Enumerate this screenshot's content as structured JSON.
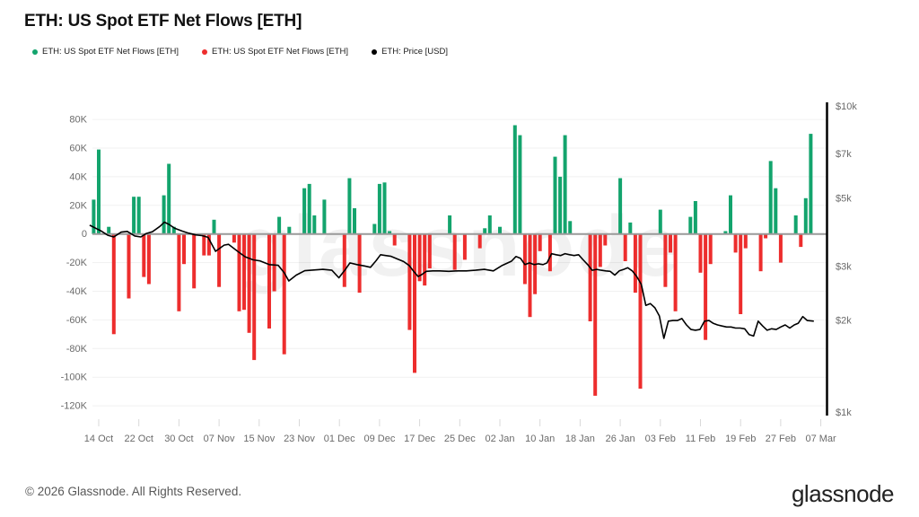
{
  "header": {
    "title": "ETH: US Spot ETF Net Flows [ETH]"
  },
  "legend": [
    {
      "label": "ETH: US Spot ETF Net Flows [ETH]",
      "color": "#13a46d",
      "series": "netflow-positive"
    },
    {
      "label": "ETH: US Spot ETF Net Flows [ETH]",
      "color": "#ed2d2d",
      "series": "netflow-negative"
    },
    {
      "label": "ETH: Price [USD]",
      "color": "#000000",
      "series": "price"
    }
  ],
  "watermark": "glassnode",
  "footer": {
    "copyright": "© 2026 Glassnode. All Rights Reserved.",
    "brand": "glassnode"
  },
  "chart_data": {
    "type": "bar+line",
    "title": "ETH: US Spot ETF Net Flows [ETH]",
    "bar_units": "ETH (thousands)",
    "line_units": "USD",
    "colors": {
      "positive": "#13a46d",
      "negative": "#ed2d2d",
      "price": "#000000",
      "zero_line": "#999999",
      "grid": "#f1f1f1",
      "axis_text": "#6b6b6b",
      "tick_mark": "#d9d9d9"
    },
    "y_left": {
      "scale": "linear",
      "range_k": [
        -130,
        92
      ],
      "ticks": [
        {
          "label": "80K",
          "value": 80
        },
        {
          "label": "60K",
          "value": 60
        },
        {
          "label": "40K",
          "value": 40
        },
        {
          "label": "20K",
          "value": 20
        },
        {
          "label": "0",
          "value": 0
        },
        {
          "label": "-20K",
          "value": -20
        },
        {
          "label": "-40K",
          "value": -40
        },
        {
          "label": "-60K",
          "value": -60
        },
        {
          "label": "-80K",
          "value": -80
        },
        {
          "label": "-100K",
          "value": -100
        },
        {
          "label": "-120K",
          "value": -120
        }
      ]
    },
    "y_right": {
      "scale": "log",
      "range_usd": [
        1000,
        10000
      ],
      "ticks": [
        {
          "label": "$10k",
          "usd": 10000
        },
        {
          "label": "$7k",
          "usd": 7000
        },
        {
          "label": "$5k",
          "usd": 5000
        },
        {
          "label": "$3k",
          "usd": 3000
        },
        {
          "label": "$2k",
          "usd": 2000
        },
        {
          "label": "$1k",
          "usd": 1000
        }
      ]
    },
    "x_ticks": [
      {
        "label": "14 Oct",
        "d": 0
      },
      {
        "label": "22 Oct",
        "d": 8
      },
      {
        "label": "30 Oct",
        "d": 16
      },
      {
        "label": "07 Nov",
        "d": 24
      },
      {
        "label": "15 Nov",
        "d": 32
      },
      {
        "label": "23 Nov",
        "d": 40
      },
      {
        "label": "01 Dec",
        "d": 48
      },
      {
        "label": "09 Dec",
        "d": 56
      },
      {
        "label": "17 Dec",
        "d": 64
      },
      {
        "label": "25 Dec",
        "d": 72
      },
      {
        "label": "02 Jan",
        "d": 80
      },
      {
        "label": "10 Jan",
        "d": 88
      },
      {
        "label": "18 Jan",
        "d": 96
      },
      {
        "label": "26 Jan",
        "d": 104
      },
      {
        "label": "03 Feb",
        "d": 112
      },
      {
        "label": "11 Feb",
        "d": 120
      },
      {
        "label": "19 Feb",
        "d": 128
      },
      {
        "label": "27 Feb",
        "d": 136
      },
      {
        "label": "07 Mar",
        "d": 144
      }
    ],
    "flows": {
      "columns": [
        "date",
        "day_index",
        "net_flow_k_eth"
      ],
      "rows": [
        [
          "13 Oct",
          -1,
          24
        ],
        [
          "14 Oct",
          0,
          59
        ],
        [
          "16 Oct",
          2,
          5
        ],
        [
          "17 Oct",
          3,
          -70
        ],
        [
          "20 Oct",
          6,
          -45
        ],
        [
          "21 Oct",
          7,
          26
        ],
        [
          "22 Oct",
          8,
          26
        ],
        [
          "23 Oct",
          9,
          -30
        ],
        [
          "24 Oct",
          10,
          -35
        ],
        [
          "27 Oct",
          13,
          27
        ],
        [
          "28 Oct",
          14,
          49
        ],
        [
          "29 Oct",
          15,
          5
        ],
        [
          "30 Oct",
          16,
          -54
        ],
        [
          "31 Oct",
          17,
          -21
        ],
        [
          "02 Nov",
          19,
          -38
        ],
        [
          "04 Nov",
          21,
          -15
        ],
        [
          "05 Nov",
          22,
          -15
        ],
        [
          "06 Nov",
          23,
          10
        ],
        [
          "07 Nov",
          24,
          -37
        ],
        [
          "10 Nov",
          27,
          -6
        ],
        [
          "11 Nov",
          28,
          -54
        ],
        [
          "12 Nov",
          29,
          -53
        ],
        [
          "13 Nov",
          30,
          -69
        ],
        [
          "14 Nov",
          31,
          -88
        ],
        [
          "17 Nov",
          34,
          -66
        ],
        [
          "18 Nov",
          35,
          -40
        ],
        [
          "19 Nov",
          36,
          12
        ],
        [
          "20 Nov",
          37,
          -84
        ],
        [
          "21 Nov",
          38,
          5
        ],
        [
          "24 Nov",
          41,
          32
        ],
        [
          "25 Nov",
          42,
          35
        ],
        [
          "26 Nov",
          43,
          13
        ],
        [
          "28 Nov",
          45,
          24
        ],
        [
          "02 Dec",
          49,
          -37
        ],
        [
          "03 Dec",
          50,
          39
        ],
        [
          "04 Dec",
          51,
          18
        ],
        [
          "05 Dec",
          52,
          -41
        ],
        [
          "08 Dec",
          55,
          7
        ],
        [
          "09 Dec",
          56,
          35
        ],
        [
          "10 Dec",
          57,
          36
        ],
        [
          "11 Dec",
          58,
          2
        ],
        [
          "12 Dec",
          59,
          -8
        ],
        [
          "15 Dec",
          62,
          -67
        ],
        [
          "16 Dec",
          63,
          -97
        ],
        [
          "17 Dec",
          64,
          -33
        ],
        [
          "18 Dec",
          65,
          -36
        ],
        [
          "19 Dec",
          66,
          -24
        ],
        [
          "23 Dec",
          70,
          13
        ],
        [
          "24 Dec",
          71,
          -25
        ],
        [
          "26 Dec",
          73,
          -18
        ],
        [
          "29 Dec",
          76,
          -10
        ],
        [
          "30 Dec",
          77,
          4
        ],
        [
          "31 Dec",
          78,
          13
        ],
        [
          "02 Jan",
          80,
          5
        ],
        [
          "05 Jan",
          83,
          76
        ],
        [
          "06 Jan",
          84,
          69
        ],
        [
          "07 Jan",
          85,
          -35
        ],
        [
          "08 Jan",
          86,
          -58
        ],
        [
          "09 Jan",
          87,
          -42
        ],
        [
          "10 Jan",
          88,
          -12
        ],
        [
          "12 Jan",
          90,
          -26
        ],
        [
          "13 Jan",
          91,
          54
        ],
        [
          "14 Jan",
          92,
          40
        ],
        [
          "15 Jan",
          93,
          69
        ],
        [
          "16 Jan",
          94,
          9
        ],
        [
          "20 Jan",
          98,
          -61
        ],
        [
          "21 Jan",
          99,
          -113
        ],
        [
          "22 Jan",
          100,
          -23
        ],
        [
          "23 Jan",
          101,
          -8
        ],
        [
          "26 Jan",
          104,
          39
        ],
        [
          "27 Jan",
          105,
          -19
        ],
        [
          "28 Jan",
          106,
          8
        ],
        [
          "29 Jan",
          107,
          -41
        ],
        [
          "30 Jan",
          108,
          -108
        ],
        [
          "03 Feb",
          112,
          17
        ],
        [
          "04 Feb",
          113,
          -37
        ],
        [
          "05 Feb",
          114,
          -13
        ],
        [
          "06 Feb",
          115,
          -54
        ],
        [
          "09 Feb",
          118,
          12
        ],
        [
          "10 Feb",
          119,
          23
        ],
        [
          "11 Feb",
          120,
          -27
        ],
        [
          "12 Feb",
          121,
          -74
        ],
        [
          "13 Feb",
          122,
          -21
        ],
        [
          "16 Feb",
          125,
          2
        ],
        [
          "17 Feb",
          126,
          27
        ],
        [
          "18 Feb",
          127,
          -13
        ],
        [
          "19 Feb",
          128,
          -56
        ],
        [
          "20 Feb",
          129,
          -10
        ],
        [
          "23 Feb",
          132,
          -26
        ],
        [
          "24 Feb",
          133,
          -3
        ],
        [
          "25 Feb",
          134,
          51
        ],
        [
          "26 Feb",
          135,
          32
        ],
        [
          "27 Feb",
          136,
          -20
        ],
        [
          "02 Mar",
          139,
          13
        ],
        [
          "03 Mar",
          140,
          -9
        ],
        [
          "04 Mar",
          141,
          25
        ],
        [
          "05 Mar",
          142,
          70
        ]
      ]
    },
    "price": {
      "columns": [
        "day_index",
        "price_usd"
      ],
      "rows": [
        [
          -1.8,
          4075
        ],
        [
          0.5,
          3900
        ],
        [
          1.8,
          3780
        ],
        [
          3,
          3730
        ],
        [
          4.5,
          3870
        ],
        [
          5.7,
          3890
        ],
        [
          7.2,
          3760
        ],
        [
          8.4,
          3730
        ],
        [
          9.5,
          3830
        ],
        [
          10.7,
          3880
        ],
        [
          12.2,
          4040
        ],
        [
          13.1,
          4170
        ],
        [
          14,
          4100
        ],
        [
          15.2,
          3980
        ],
        [
          16.6,
          3900
        ],
        [
          17.9,
          3840
        ],
        [
          19.3,
          3790
        ],
        [
          20.6,
          3770
        ],
        [
          21.8,
          3720
        ],
        [
          23.3,
          3350
        ],
        [
          25,
          3510
        ],
        [
          25.9,
          3530
        ],
        [
          27.7,
          3350
        ],
        [
          29.2,
          3215
        ],
        [
          30.8,
          3140
        ],
        [
          32.2,
          3115
        ],
        [
          34,
          3030
        ],
        [
          35.8,
          3015
        ],
        [
          37,
          2850
        ],
        [
          37.9,
          2680
        ],
        [
          39.4,
          2800
        ],
        [
          41.1,
          2895
        ],
        [
          42.9,
          2910
        ],
        [
          44.7,
          2925
        ],
        [
          46.5,
          2905
        ],
        [
          47.9,
          2745
        ],
        [
          49.2,
          2925
        ],
        [
          50.1,
          3070
        ],
        [
          51.5,
          3030
        ],
        [
          53,
          3000
        ],
        [
          54.2,
          2970
        ],
        [
          55.3,
          3120
        ],
        [
          56.2,
          3265
        ],
        [
          57.2,
          3245
        ],
        [
          58.3,
          3225
        ],
        [
          59.6,
          3160
        ],
        [
          60.8,
          3100
        ],
        [
          61.9,
          3010
        ],
        [
          62.8,
          2880
        ],
        [
          63.7,
          2770
        ],
        [
          64.4,
          2810
        ],
        [
          65.3,
          2880
        ],
        [
          66.6,
          2890
        ],
        [
          68,
          2890
        ],
        [
          69.8,
          2880
        ],
        [
          71.6,
          2890
        ],
        [
          73.3,
          2890
        ],
        [
          75.1,
          2905
        ],
        [
          76.9,
          2925
        ],
        [
          78.7,
          2890
        ],
        [
          80.5,
          3015
        ],
        [
          82.3,
          3110
        ],
        [
          83.2,
          3220
        ],
        [
          84.1,
          3180
        ],
        [
          85,
          3030
        ],
        [
          85.9,
          3070
        ],
        [
          86.8,
          3030
        ],
        [
          87.7,
          3050
        ],
        [
          88.6,
          3030
        ],
        [
          89.4,
          3070
        ],
        [
          90.3,
          3290
        ],
        [
          91.2,
          3265
        ],
        [
          92.1,
          3245
        ],
        [
          93,
          3290
        ],
        [
          93.9,
          3265
        ],
        [
          94.8,
          3245
        ],
        [
          95.7,
          3265
        ],
        [
          96.6,
          3140
        ],
        [
          97.5,
          3030
        ],
        [
          98.4,
          2905
        ],
        [
          99.3,
          2925
        ],
        [
          100.2,
          2905
        ],
        [
          101.1,
          2890
        ],
        [
          102,
          2880
        ],
        [
          102.9,
          2800
        ],
        [
          103.8,
          2890
        ],
        [
          104.7,
          2925
        ],
        [
          105.5,
          2960
        ],
        [
          106.4,
          2890
        ],
        [
          107.3,
          2770
        ],
        [
          108.2,
          2610
        ],
        [
          109.1,
          2230
        ],
        [
          110,
          2260
        ],
        [
          110.9,
          2190
        ],
        [
          111.8,
          2060
        ],
        [
          112.7,
          1740
        ],
        [
          113.6,
          1980
        ],
        [
          114.5,
          1990
        ],
        [
          115.4,
          1990
        ],
        [
          116.3,
          2020
        ],
        [
          117.2,
          1925
        ],
        [
          118.1,
          1860
        ],
        [
          119,
          1850
        ],
        [
          119.9,
          1860
        ],
        [
          120.8,
          1980
        ],
        [
          121.7,
          1990
        ],
        [
          122.5,
          1950
        ],
        [
          123.4,
          1925
        ],
        [
          124.3,
          1910
        ],
        [
          125.2,
          1895
        ],
        [
          126.1,
          1895
        ],
        [
          127,
          1880
        ],
        [
          127.9,
          1880
        ],
        [
          128.8,
          1870
        ],
        [
          129.7,
          1790
        ],
        [
          130.6,
          1770
        ],
        [
          131.5,
          1980
        ],
        [
          132.4,
          1910
        ],
        [
          133.3,
          1850
        ],
        [
          134.2,
          1870
        ],
        [
          135.1,
          1860
        ],
        [
          136,
          1895
        ],
        [
          136.9,
          1925
        ],
        [
          137.8,
          1880
        ],
        [
          138.7,
          1925
        ],
        [
          139.5,
          1950
        ],
        [
          140.4,
          2050
        ],
        [
          141.3,
          1990
        ],
        [
          142.6,
          1980
        ]
      ]
    }
  }
}
